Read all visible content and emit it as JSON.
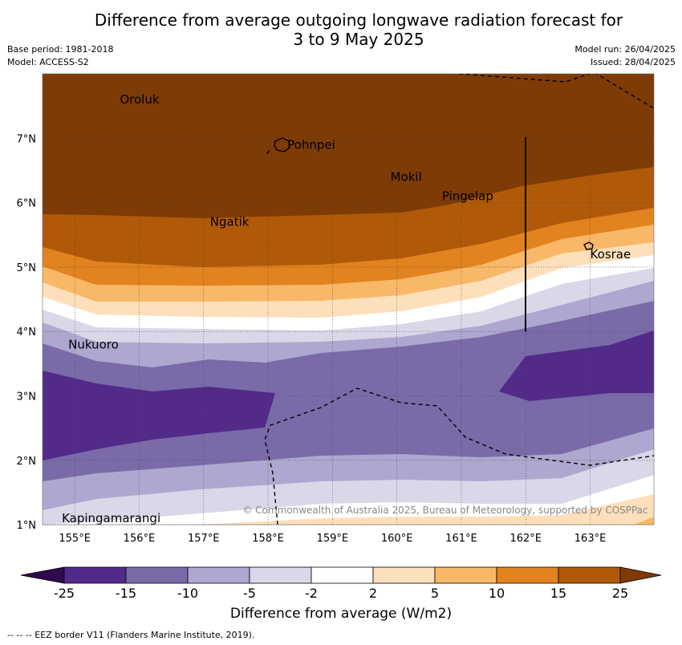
{
  "title": {
    "line1": "Difference from average outgoing longwave radiation forecast for",
    "line2": "3 to 9 May 2025"
  },
  "meta": {
    "base_period": "Base period: 1981-2018",
    "model": "Model: ACCESS-S2",
    "model_run": "Model run: 26/04/2025",
    "issued": "Issued: 28/04/2025"
  },
  "map": {
    "lon_labels": [
      "155°E",
      "156°E",
      "157°E",
      "158°E",
      "159°E",
      "160°E",
      "161°E",
      "162°E",
      "163°E"
    ],
    "lat_labels": [
      "7°N",
      "6°N",
      "5°N",
      "4°N",
      "3°N",
      "2°N",
      "1°N"
    ],
    "places": [
      {
        "name": "Oroluk",
        "lon": 155.7,
        "lat": 7.6
      },
      {
        "name": "Pohnpei",
        "lon": 158.3,
        "lat": 6.9
      },
      {
        "name": "Mokil",
        "lon": 159.9,
        "lat": 6.4
      },
      {
        "name": "Pingelap",
        "lon": 160.7,
        "lat": 6.1
      },
      {
        "name": "Ngatik",
        "lon": 157.1,
        "lat": 5.7
      },
      {
        "name": "Kosrae",
        "lon": 163.0,
        "lat": 5.2
      },
      {
        "name": "Nukuoro",
        "lon": 154.9,
        "lat": 3.8
      },
      {
        "name": "Kapingamarangi",
        "lon": 154.8,
        "lat": 1.1
      }
    ],
    "copyright": "© Commonwealth of Australia 2025, Bureau of Meteorology, supported by COSPPac"
  },
  "colorbar": {
    "ticks": [
      "-25",
      "-15",
      "-10",
      "-5",
      "-2",
      "2",
      "5",
      "10",
      "15",
      "25"
    ],
    "colors": [
      "#522a8a",
      "#7a6ba8",
      "#aea8d0",
      "#d9d8e9",
      "#ffffff",
      "#fde0bb",
      "#f9b768",
      "#e2831f",
      "#b05908"
    ],
    "under_color": "#2f0a4e",
    "over_color": "#7e3b06",
    "label": "Difference from average (W/m2)"
  },
  "footer": "--  --  -- EEZ border V11 (Flanders Marine Institute, 2019)."
}
